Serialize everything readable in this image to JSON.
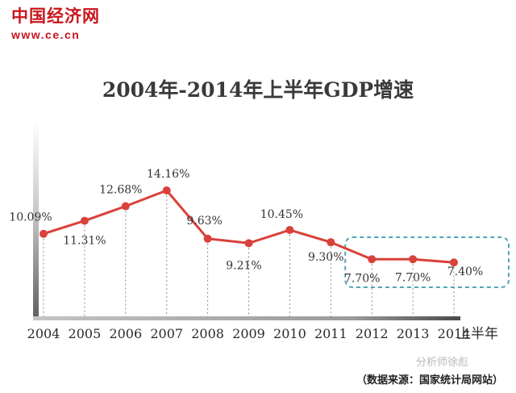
{
  "header": {
    "logo_text": "中国经济网",
    "logo_url": "www.ce.cn"
  },
  "chart_data": {
    "type": "line",
    "title": "2004年-2014年上半年GDP增速",
    "categories": [
      "2004",
      "2005",
      "2006",
      "2007",
      "2008",
      "2009",
      "2010",
      "2011",
      "2012",
      "2013",
      "2014"
    ],
    "x_axis_suffix": "上半年",
    "series": [
      {
        "values": [
          10.09,
          11.31,
          12.68,
          14.16,
          9.63,
          9.21,
          10.45,
          9.3,
          7.7,
          7.7,
          7.4
        ],
        "labels": [
          "10.09%",
          "11.31%",
          "12.68%",
          "14.16%",
          "9.63%",
          "9.21%",
          "10.45%",
          "9.30%",
          "7.70%",
          "7.70%",
          "7.40%"
        ],
        "color": "#d9413a"
      }
    ],
    "highlight_color": "#4fa6b5",
    "grid": false,
    "legend": "none"
  },
  "footer": {
    "watermark": "分析师徐彪",
    "source": "（数据来源：国家统计局网站）"
  }
}
